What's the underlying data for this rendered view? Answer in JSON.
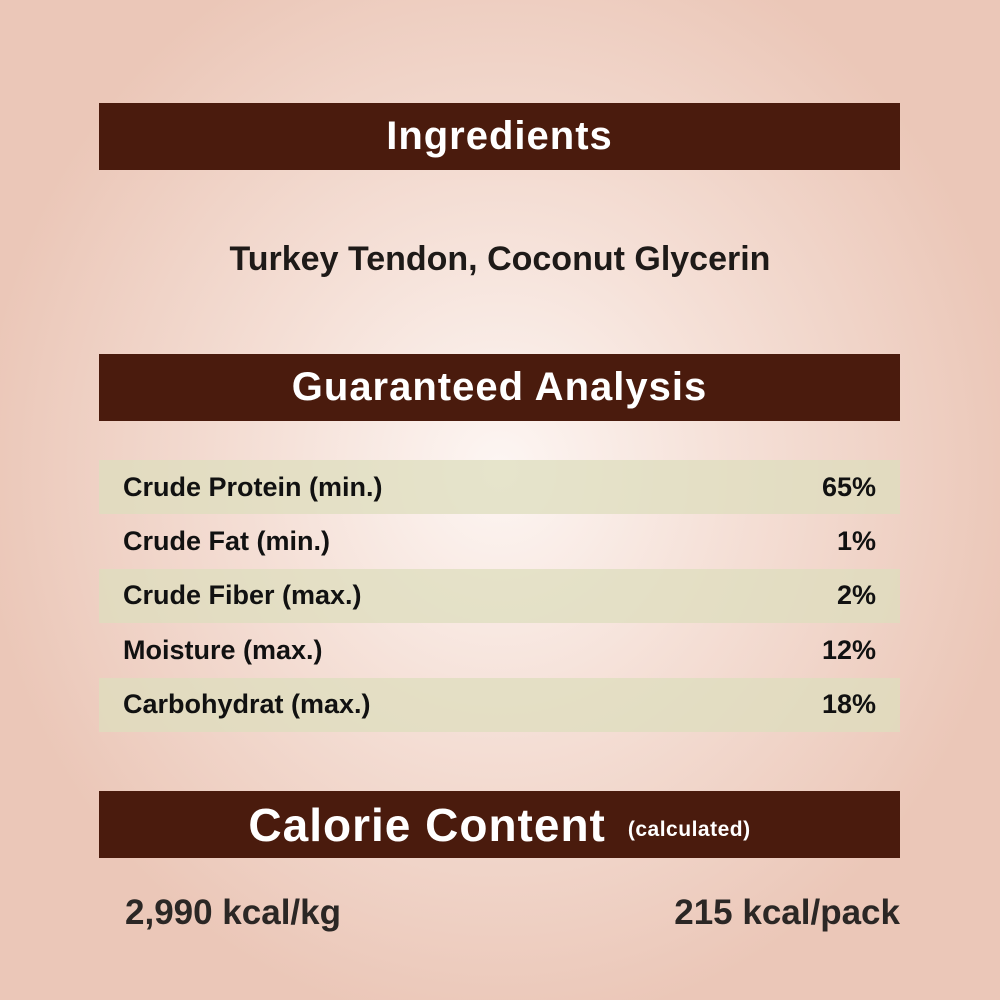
{
  "ingredients": {
    "title": "Ingredients",
    "text": "Turkey Tendon, Coconut Glycerin"
  },
  "analysis": {
    "title": "Guaranteed Analysis",
    "rows": [
      {
        "label": "Crude Protein (min.)",
        "value": "65%"
      },
      {
        "label": "Crude Fat (min.)",
        "value": "1%"
      },
      {
        "label": "Crude Fiber (max.)",
        "value": "2%"
      },
      {
        "label": "Moisture (max.)",
        "value": "12%"
      },
      {
        "label": "Carbohydrat (max.)",
        "value": "18%"
      }
    ]
  },
  "calorie": {
    "title": "Calorie Content",
    "subtitle": "(calculated)",
    "per_kg": "2,990 kcal/kg",
    "per_pack": "215 kcal/pack"
  },
  "colors": {
    "banner": "#4a1b0d",
    "background": "#ebc7b8",
    "row_stripe": "#dedebe"
  }
}
